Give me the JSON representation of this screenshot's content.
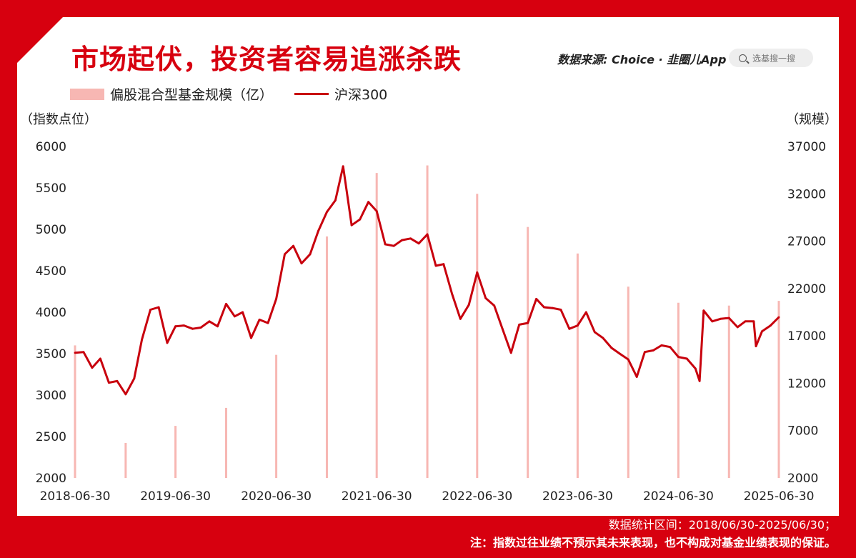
{
  "title": "市场起伏，投资者容易追涨杀跌",
  "source": "数据来源: Choice · 韭圈儿App",
  "search_placeholder": "选基搜一搜",
  "footnote": {
    "range": "数据统计区间：2018/06/30-2025/06/30；",
    "disclaimer": "注：指数过往业绩不预示其未来表现，也不构成对基金业绩表现的保证。"
  },
  "colors": {
    "frame": "#d7000f",
    "line": "#c8000d",
    "bar": "#f7b7b3"
  },
  "chart_data": {
    "type": "bar+line",
    "legend": [
      "偏股混合型基金规模（亿）",
      "沪深300"
    ],
    "legend_position": "top-left",
    "grid": false,
    "y_left": {
      "label": "（指数点位）",
      "min": 2000,
      "max": 6000,
      "ticks": [
        2000,
        2500,
        3000,
        3500,
        4000,
        4500,
        5000,
        5500,
        6000
      ]
    },
    "y_right": {
      "label": "（规模）",
      "min": 2000,
      "max": 37000,
      "ticks": [
        2000,
        7000,
        12000,
        17000,
        22000,
        27000,
        32000,
        37000
      ]
    },
    "x_start": "2018-06-30",
    "x_end": "2025-06-30",
    "x_ticks": [
      "2018-06-30",
      "2019-06-30",
      "2020-06-30",
      "2021-06-30",
      "2022-06-30",
      "2023-06-30",
      "2024-06-30",
      "2025-06-30"
    ],
    "bars": {
      "name": "偏股混合型基金规模（亿）",
      "dates": [
        "2018-06-30",
        "2018-12-31",
        "2019-06-30",
        "2019-12-31",
        "2020-06-30",
        "2020-12-31",
        "2021-06-30",
        "2021-12-31",
        "2022-06-30",
        "2022-12-31",
        "2023-06-30",
        "2023-12-31",
        "2024-06-30",
        "2024-12-31",
        "2025-06-30"
      ],
      "values": [
        16000,
        5700,
        7500,
        9400,
        15000,
        27500,
        34200,
        35000,
        32000,
        28500,
        25700,
        22200,
        20500,
        20200,
        20700
      ]
    },
    "line": {
      "name": "沪深300",
      "points": [
        [
          "2018-06-30",
          3510
        ],
        [
          "2018-07-31",
          3520
        ],
        [
          "2018-08-31",
          3330
        ],
        [
          "2018-09-30",
          3440
        ],
        [
          "2018-10-31",
          3150
        ],
        [
          "2018-11-30",
          3170
        ],
        [
          "2018-12-31",
          3010
        ],
        [
          "2019-01-31",
          3200
        ],
        [
          "2019-02-28",
          3670
        ],
        [
          "2019-03-31",
          4030
        ],
        [
          "2019-04-30",
          4060
        ],
        [
          "2019-05-31",
          3630
        ],
        [
          "2019-06-30",
          3830
        ],
        [
          "2019-07-31",
          3840
        ],
        [
          "2019-08-31",
          3800
        ],
        [
          "2019-09-30",
          3815
        ],
        [
          "2019-10-31",
          3890
        ],
        [
          "2019-11-30",
          3830
        ],
        [
          "2019-12-31",
          4100
        ],
        [
          "2020-01-31",
          3950
        ],
        [
          "2020-02-29",
          4000
        ],
        [
          "2020-03-31",
          3690
        ],
        [
          "2020-04-30",
          3910
        ],
        [
          "2020-05-31",
          3870
        ],
        [
          "2020-06-30",
          4160
        ],
        [
          "2020-07-31",
          4700
        ],
        [
          "2020-08-31",
          4800
        ],
        [
          "2020-09-30",
          4590
        ],
        [
          "2020-10-31",
          4700
        ],
        [
          "2020-11-30",
          4980
        ],
        [
          "2020-12-31",
          5210
        ],
        [
          "2021-01-31",
          5350
        ],
        [
          "2021-02-28",
          5760
        ],
        [
          "2021-03-31",
          5050
        ],
        [
          "2021-04-30",
          5120
        ],
        [
          "2021-05-31",
          5330
        ],
        [
          "2021-06-30",
          5220
        ],
        [
          "2021-07-31",
          4820
        ],
        [
          "2021-08-31",
          4800
        ],
        [
          "2021-09-30",
          4870
        ],
        [
          "2021-10-31",
          4890
        ],
        [
          "2021-11-30",
          4830
        ],
        [
          "2021-12-31",
          4940
        ],
        [
          "2022-01-31",
          4560
        ],
        [
          "2022-02-28",
          4580
        ],
        [
          "2022-03-31",
          4220
        ],
        [
          "2022-04-30",
          3920
        ],
        [
          "2022-05-31",
          4090
        ],
        [
          "2022-06-30",
          4480
        ],
        [
          "2022-07-31",
          4170
        ],
        [
          "2022-08-31",
          4080
        ],
        [
          "2022-09-30",
          3800
        ],
        [
          "2022-10-31",
          3510
        ],
        [
          "2022-11-30",
          3850
        ],
        [
          "2022-12-31",
          3870
        ],
        [
          "2023-01-31",
          4160
        ],
        [
          "2023-02-28",
          4060
        ],
        [
          "2023-03-31",
          4050
        ],
        [
          "2023-04-30",
          4030
        ],
        [
          "2023-05-31",
          3800
        ],
        [
          "2023-06-30",
          3840
        ],
        [
          "2023-07-31",
          4000
        ],
        [
          "2023-08-31",
          3760
        ],
        [
          "2023-09-30",
          3690
        ],
        [
          "2023-10-31",
          3570
        ],
        [
          "2023-11-30",
          3500
        ],
        [
          "2023-12-31",
          3430
        ],
        [
          "2024-01-31",
          3220
        ],
        [
          "2024-02-29",
          3520
        ],
        [
          "2024-03-31",
          3540
        ],
        [
          "2024-04-30",
          3600
        ],
        [
          "2024-05-31",
          3580
        ],
        [
          "2024-06-30",
          3460
        ],
        [
          "2024-07-31",
          3440
        ],
        [
          "2024-08-31",
          3320
        ],
        [
          "2024-09-15",
          3170
        ],
        [
          "2024-09-30",
          4020
        ],
        [
          "2024-10-31",
          3890
        ],
        [
          "2024-11-30",
          3920
        ],
        [
          "2024-12-31",
          3930
        ],
        [
          "2025-01-31",
          3820
        ],
        [
          "2025-02-28",
          3890
        ],
        [
          "2025-03-31",
          3890
        ],
        [
          "2025-04-08",
          3590
        ],
        [
          "2025-04-30",
          3770
        ],
        [
          "2025-05-31",
          3840
        ],
        [
          "2025-06-30",
          3940
        ]
      ]
    }
  }
}
